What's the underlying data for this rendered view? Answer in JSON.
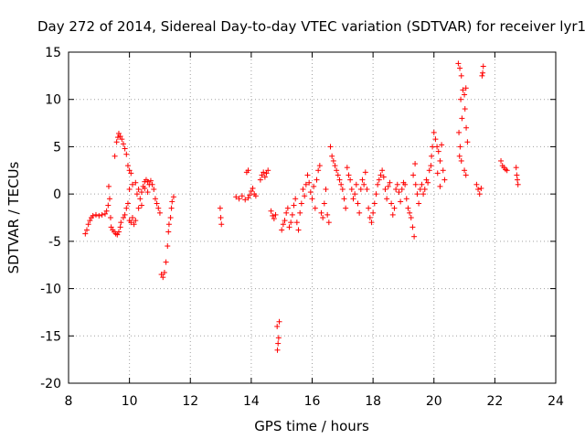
{
  "chart_data": {
    "type": "scatter",
    "title": "Day 272 of 2014, Sidereal Day-to-day VTEC variation (SDTVAR) for receiver lyr1",
    "xlabel": "GPS time / hours",
    "ylabel": "SDTVAR / TECUs",
    "xlim": [
      8,
      24
    ],
    "ylim": [
      -20,
      15
    ],
    "xticks": [
      8,
      10,
      12,
      14,
      16,
      18,
      20,
      22,
      24
    ],
    "yticks": [
      -20,
      -15,
      -10,
      -5,
      0,
      5,
      10,
      15
    ],
    "grid": true,
    "marker": "+",
    "color": "#ff0000",
    "series": [
      {
        "name": "lyr1",
        "points": [
          [
            8.55,
            -4.2
          ],
          [
            8.6,
            -3.8
          ],
          [
            8.65,
            -3.2
          ],
          [
            8.7,
            -2.8
          ],
          [
            8.75,
            -2.5
          ],
          [
            8.8,
            -2.3
          ],
          [
            8.9,
            -2.2
          ],
          [
            9.0,
            -2.3
          ],
          [
            9.1,
            -2.2
          ],
          [
            9.2,
            -2.1
          ],
          [
            9.25,
            -1.8
          ],
          [
            9.3,
            -1.2
          ],
          [
            9.32,
            0.8
          ],
          [
            9.35,
            -0.5
          ],
          [
            9.38,
            -2.5
          ],
          [
            9.4,
            -3.5
          ],
          [
            9.45,
            -3.8
          ],
          [
            9.5,
            -4.0
          ],
          [
            9.55,
            -4.2
          ],
          [
            9.6,
            -4.3
          ],
          [
            9.65,
            -4.0
          ],
          [
            9.7,
            -3.5
          ],
          [
            9.52,
            4.0
          ],
          [
            9.58,
            5.5
          ],
          [
            9.62,
            6.0
          ],
          [
            9.65,
            6.4
          ],
          [
            9.7,
            6.1
          ],
          [
            9.75,
            5.8
          ],
          [
            9.8,
            5.3
          ],
          [
            9.85,
            4.8
          ],
          [
            9.9,
            4.2
          ],
          [
            9.95,
            3.0
          ],
          [
            10.0,
            2.5
          ],
          [
            10.05,
            2.2
          ],
          [
            9.72,
            -3.0
          ],
          [
            9.8,
            -2.5
          ],
          [
            9.85,
            -2.2
          ],
          [
            9.9,
            -1.5
          ],
          [
            9.95,
            -1.0
          ],
          [
            10.0,
            -2.8
          ],
          [
            10.05,
            -3.0
          ],
          [
            10.1,
            -2.5
          ],
          [
            10.15,
            -3.2
          ],
          [
            10.2,
            -2.8
          ],
          [
            10.0,
            0.5
          ],
          [
            10.1,
            1.0
          ],
          [
            10.2,
            1.2
          ],
          [
            10.3,
            0.5
          ],
          [
            10.35,
            -0.5
          ],
          [
            10.4,
            -1.2
          ],
          [
            10.45,
            0.8
          ],
          [
            10.5,
            1.3
          ],
          [
            10.55,
            1.5
          ],
          [
            10.6,
            1.3
          ],
          [
            10.65,
            1.0
          ],
          [
            10.25,
            0.0
          ],
          [
            10.3,
            -1.5
          ],
          [
            10.4,
            0.2
          ],
          [
            10.5,
            0.6
          ],
          [
            10.6,
            0.2
          ],
          [
            10.7,
            1.4
          ],
          [
            10.75,
            1.0
          ],
          [
            10.8,
            0.5
          ],
          [
            10.85,
            -0.5
          ],
          [
            10.9,
            -1.0
          ],
          [
            10.95,
            -1.5
          ],
          [
            11.0,
            -2.0
          ],
          [
            11.05,
            -8.5
          ],
          [
            11.1,
            -8.8
          ],
          [
            11.15,
            -8.3
          ],
          [
            11.2,
            -7.2
          ],
          [
            11.25,
            -5.5
          ],
          [
            11.28,
            -4.0
          ],
          [
            11.3,
            -3.2
          ],
          [
            11.35,
            -2.5
          ],
          [
            11.38,
            -1.5
          ],
          [
            11.4,
            -0.8
          ],
          [
            11.45,
            -0.3
          ],
          [
            12.98,
            -1.5
          ],
          [
            13.0,
            -2.5
          ],
          [
            13.02,
            -3.2
          ],
          [
            13.5,
            -0.3
          ],
          [
            13.6,
            -0.5
          ],
          [
            13.7,
            -0.2
          ],
          [
            13.8,
            -0.6
          ],
          [
            13.9,
            -0.4
          ],
          [
            13.95,
            -0.1
          ],
          [
            14.0,
            0.3
          ],
          [
            14.05,
            0.6
          ],
          [
            14.1,
            0.0
          ],
          [
            14.15,
            -0.2
          ],
          [
            13.85,
            2.3
          ],
          [
            13.9,
            2.5
          ],
          [
            14.3,
            1.5
          ],
          [
            14.35,
            2.0
          ],
          [
            14.4,
            2.3
          ],
          [
            14.45,
            1.8
          ],
          [
            14.5,
            2.2
          ],
          [
            14.55,
            2.5
          ],
          [
            14.65,
            -1.8
          ],
          [
            14.7,
            -2.3
          ],
          [
            14.75,
            -2.6
          ],
          [
            14.8,
            -2.2
          ],
          [
            14.85,
            -14.0
          ],
          [
            14.9,
            -15.2
          ],
          [
            14.88,
            -15.8
          ],
          [
            14.86,
            -16.5
          ],
          [
            14.92,
            -13.5
          ],
          [
            15.0,
            -3.8
          ],
          [
            15.05,
            -3.2
          ],
          [
            15.1,
            -2.8
          ],
          [
            15.15,
            -2.0
          ],
          [
            15.2,
            -1.5
          ],
          [
            15.25,
            -3.5
          ],
          [
            15.3,
            -3.0
          ],
          [
            15.35,
            -2.2
          ],
          [
            15.4,
            -1.2
          ],
          [
            15.45,
            -0.5
          ],
          [
            15.5,
            -3.0
          ],
          [
            15.55,
            -3.8
          ],
          [
            15.6,
            -2.0
          ],
          [
            15.65,
            -1.0
          ],
          [
            15.7,
            0.5
          ],
          [
            15.75,
            -0.2
          ],
          [
            15.8,
            1.0
          ],
          [
            15.85,
            2.0
          ],
          [
            15.9,
            1.2
          ],
          [
            15.95,
            0.2
          ],
          [
            16.0,
            -0.5
          ],
          [
            16.05,
            0.8
          ],
          [
            16.1,
            -1.5
          ],
          [
            16.15,
            1.5
          ],
          [
            16.2,
            2.5
          ],
          [
            16.25,
            3.0
          ],
          [
            16.3,
            -2.0
          ],
          [
            16.35,
            -2.5
          ],
          [
            16.4,
            -1.0
          ],
          [
            16.45,
            0.5
          ],
          [
            16.5,
            -2.2
          ],
          [
            16.55,
            -3.0
          ],
          [
            16.6,
            5.0
          ],
          [
            16.65,
            4.0
          ],
          [
            16.7,
            3.5
          ],
          [
            16.75,
            3.0
          ],
          [
            16.8,
            2.5
          ],
          [
            16.85,
            2.0
          ],
          [
            16.9,
            1.5
          ],
          [
            16.95,
            1.0
          ],
          [
            17.0,
            0.5
          ],
          [
            17.05,
            -0.5
          ],
          [
            17.1,
            -1.5
          ],
          [
            17.15,
            2.8
          ],
          [
            17.2,
            2.0
          ],
          [
            17.25,
            1.5
          ],
          [
            17.3,
            0.5
          ],
          [
            17.35,
            -0.5
          ],
          [
            17.4,
            0.0
          ],
          [
            17.45,
            1.0
          ],
          [
            17.5,
            -1.0
          ],
          [
            17.55,
            -2.0
          ],
          [
            17.6,
            0.5
          ],
          [
            17.65,
            1.5
          ],
          [
            17.7,
            1.0
          ],
          [
            17.75,
            2.3
          ],
          [
            17.8,
            0.5
          ],
          [
            17.85,
            -1.5
          ],
          [
            17.9,
            -2.5
          ],
          [
            17.95,
            -3.0
          ],
          [
            18.0,
            -2.0
          ],
          [
            18.05,
            -1.0
          ],
          [
            18.1,
            0.0
          ],
          [
            18.15,
            1.0
          ],
          [
            18.2,
            1.5
          ],
          [
            18.25,
            2.0
          ],
          [
            18.3,
            2.5
          ],
          [
            18.35,
            1.8
          ],
          [
            18.4,
            0.5
          ],
          [
            18.45,
            -0.5
          ],
          [
            18.5,
            0.8
          ],
          [
            18.55,
            1.2
          ],
          [
            18.6,
            -1.0
          ],
          [
            18.65,
            -2.2
          ],
          [
            18.7,
            -1.5
          ],
          [
            18.75,
            0.5
          ],
          [
            18.8,
            1.0
          ],
          [
            18.85,
            0.2
          ],
          [
            18.9,
            -0.8
          ],
          [
            18.95,
            0.5
          ],
          [
            19.0,
            1.2
          ],
          [
            19.05,
            1.0
          ],
          [
            19.1,
            -0.5
          ],
          [
            19.15,
            -1.5
          ],
          [
            19.2,
            -2.0
          ],
          [
            19.25,
            -2.5
          ],
          [
            19.3,
            -3.5
          ],
          [
            19.35,
            -4.5
          ],
          [
            19.32,
            2.0
          ],
          [
            19.38,
            3.2
          ],
          [
            19.4,
            1.0
          ],
          [
            19.45,
            0.0
          ],
          [
            19.5,
            -1.0
          ],
          [
            19.55,
            0.5
          ],
          [
            19.6,
            1.0
          ],
          [
            19.65,
            0.0
          ],
          [
            19.7,
            0.5
          ],
          [
            19.75,
            1.5
          ],
          [
            19.8,
            1.2
          ],
          [
            19.85,
            2.5
          ],
          [
            19.9,
            3.0
          ],
          [
            19.92,
            4.0
          ],
          [
            19.95,
            5.0
          ],
          [
            20.0,
            6.5
          ],
          [
            20.05,
            5.8
          ],
          [
            20.1,
            5.0
          ],
          [
            20.15,
            4.5
          ],
          [
            20.2,
            3.5
          ],
          [
            20.25,
            5.2
          ],
          [
            20.3,
            2.5
          ],
          [
            20.35,
            1.5
          ],
          [
            20.12,
            2.2
          ],
          [
            20.2,
            0.8
          ],
          [
            20.8,
            13.8
          ],
          [
            20.85,
            13.3
          ],
          [
            20.9,
            12.5
          ],
          [
            20.95,
            11.0
          ],
          [
            20.88,
            10.0
          ],
          [
            20.92,
            8.0
          ],
          [
            20.82,
            6.5
          ],
          [
            20.86,
            5.0
          ],
          [
            20.84,
            4.0
          ],
          [
            20.9,
            3.5
          ],
          [
            21.0,
            10.5
          ],
          [
            21.05,
            11.2
          ],
          [
            21.02,
            9.0
          ],
          [
            21.06,
            7.0
          ],
          [
            21.1,
            5.5
          ],
          [
            21.0,
            2.5
          ],
          [
            21.05,
            2.0
          ],
          [
            21.4,
            1.0
          ],
          [
            21.45,
            0.5
          ],
          [
            21.5,
            0.0
          ],
          [
            21.55,
            0.6
          ],
          [
            21.6,
            12.8
          ],
          [
            21.62,
            13.5
          ],
          [
            21.58,
            12.5
          ],
          [
            22.2,
            3.5
          ],
          [
            22.25,
            3.0
          ],
          [
            22.3,
            2.8
          ],
          [
            22.35,
            2.6
          ],
          [
            22.4,
            2.5
          ],
          [
            22.7,
            2.8
          ],
          [
            22.72,
            2.0
          ],
          [
            22.74,
            1.5
          ],
          [
            22.76,
            1.0
          ]
        ]
      }
    ]
  }
}
